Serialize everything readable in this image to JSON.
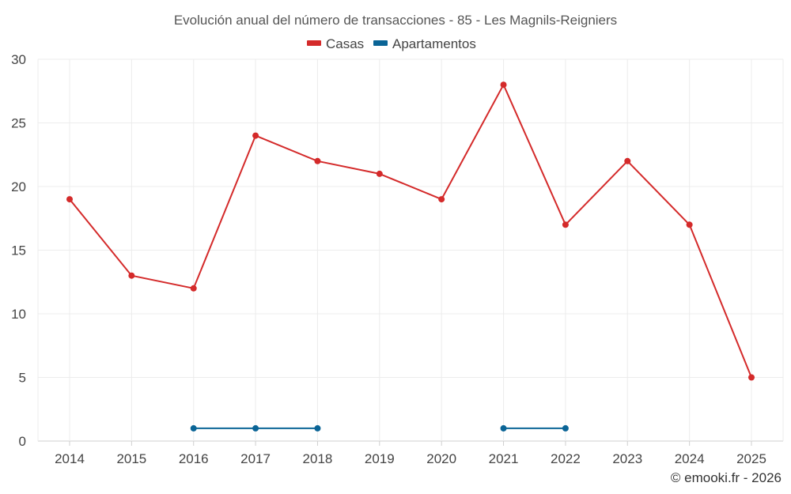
{
  "chart_data": {
    "type": "line",
    "title": "Evolución anual del número de transacciones - 85 - Les Magnils-Reigniers",
    "xlabel": "",
    "ylabel": "",
    "categories": [
      "2014",
      "2015",
      "2016",
      "2017",
      "2018",
      "2019",
      "2020",
      "2021",
      "2022",
      "2023",
      "2024",
      "2025"
    ],
    "ylim": [
      0,
      30
    ],
    "yticks": [
      0,
      5,
      10,
      15,
      20,
      25,
      30
    ],
    "grid": true,
    "legend_position": "top-center",
    "series": [
      {
        "name": "Casas",
        "color": "#d42a2a",
        "values": [
          19,
          13,
          12,
          24,
          22,
          21,
          19,
          28,
          17,
          22,
          17,
          5
        ]
      },
      {
        "name": "Apartamentos",
        "color": "#0a6496",
        "values": [
          null,
          null,
          1,
          1,
          1,
          null,
          null,
          1,
          1,
          null,
          null,
          null
        ]
      }
    ],
    "credit": "© emooki.fr - 2026"
  }
}
